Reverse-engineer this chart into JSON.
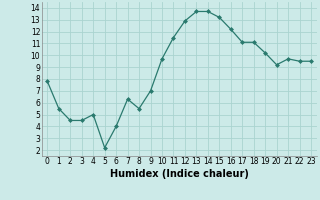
{
  "x": [
    0,
    1,
    2,
    3,
    4,
    5,
    6,
    7,
    8,
    9,
    10,
    11,
    12,
    13,
    14,
    15,
    16,
    17,
    18,
    19,
    20,
    21,
    22,
    23
  ],
  "y": [
    7.8,
    5.5,
    4.5,
    4.5,
    5.0,
    2.2,
    4.0,
    6.3,
    5.5,
    7.0,
    9.7,
    11.5,
    12.9,
    13.7,
    13.7,
    13.2,
    12.2,
    11.1,
    11.1,
    10.2,
    9.2,
    9.7,
    9.5,
    9.5
  ],
  "line_color": "#2a7a6e",
  "marker": "D",
  "marker_size": 2.0,
  "bg_color": "#cceae8",
  "grid_color": "#aad4d0",
  "xlabel": "Humidex (Indice chaleur)",
  "xlim": [
    -0.5,
    23.5
  ],
  "ylim": [
    1.5,
    14.5
  ],
  "yticks": [
    2,
    3,
    4,
    5,
    6,
    7,
    8,
    9,
    10,
    11,
    12,
    13,
    14
  ],
  "xticks": [
    0,
    1,
    2,
    3,
    4,
    5,
    6,
    7,
    8,
    9,
    10,
    11,
    12,
    13,
    14,
    15,
    16,
    17,
    18,
    19,
    20,
    21,
    22,
    23
  ],
  "tick_label_fontsize": 5.5,
  "xlabel_fontsize": 7.0,
  "linewidth": 0.9
}
